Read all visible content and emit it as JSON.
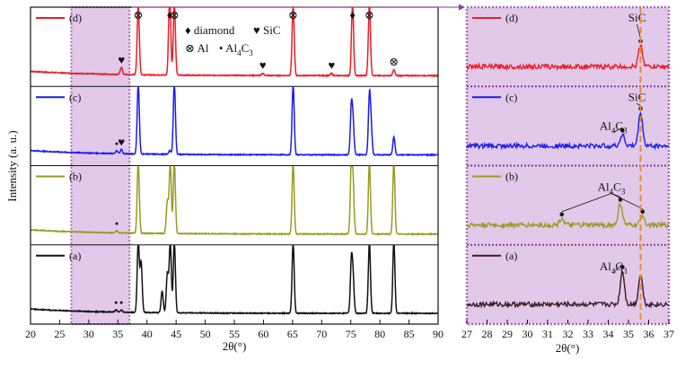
{
  "chart_data": [
    {
      "type": "line",
      "xlabel": "2θ(°)",
      "ylabel": "Intensity (a. u.)",
      "xlim": [
        20,
        90
      ],
      "x_ticks": [
        "20",
        "25",
        "30",
        "35",
        "40",
        "45",
        "50",
        "55",
        "60",
        "65",
        "70",
        "75",
        "80",
        "85",
        "90"
      ],
      "highlight_range": [
        27,
        37
      ],
      "legend": {
        "diamond": "diamond",
        "sic": "SiC",
        "al": "Al",
        "al4c3_main": "Al",
        "al4c3_sub": "4",
        "al4c3_end": "C",
        "al4c3_sub2": "3"
      },
      "series": [
        {
          "name": "(d)",
          "color": "#ee1c25",
          "peaks": [
            [
              35.6,
              0.1
            ],
            [
              38.5,
              1.0
            ],
            [
              43.9,
              1.2
            ],
            [
              44.7,
              1.0
            ],
            [
              59.9,
              0.03
            ],
            [
              65.1,
              1.0
            ],
            [
              71.7,
              0.03
            ],
            [
              75.3,
              1.0
            ],
            [
              78.2,
              1.0
            ],
            [
              82.4,
              0.08
            ]
          ],
          "markers": [
            {
              "x": 35.6,
              "sym": "heart"
            },
            {
              "x": 38.5,
              "sym": "otimes"
            },
            {
              "x": 43.9,
              "sym": "diamond"
            },
            {
              "x": 44.7,
              "sym": "otimes"
            },
            {
              "x": 59.9,
              "sym": "heart"
            },
            {
              "x": 65.1,
              "sym": "otimes"
            },
            {
              "x": 71.7,
              "sym": "heart"
            },
            {
              "x": 75.3,
              "sym": "diamond"
            },
            {
              "x": 78.2,
              "sym": "otimes"
            },
            {
              "x": 82.4,
              "sym": "otimes"
            }
          ]
        },
        {
          "name": "(c)",
          "color": "#1b1bf2",
          "peaks": [
            [
              34.8,
              0.04
            ],
            [
              35.6,
              0.06
            ],
            [
              38.5,
              1.0
            ],
            [
              43.9,
              0.05
            ],
            [
              44.7,
              1.0
            ],
            [
              65.1,
              1.0
            ],
            [
              75.1,
              0.65
            ],
            [
              75.4,
              0.4
            ],
            [
              78.2,
              0.8
            ],
            [
              78.5,
              0.35
            ],
            [
              82.4,
              0.25
            ]
          ],
          "markers": [
            {
              "x": 34.8,
              "sym": "dot"
            },
            {
              "x": 35.6,
              "sym": "heart"
            }
          ]
        },
        {
          "name": "(b)",
          "color": "#9a9a23",
          "peaks": [
            [
              34.8,
              0.03
            ],
            [
              38.5,
              1.0
            ],
            [
              43.5,
              0.45
            ],
            [
              44.0,
              1.0
            ],
            [
              44.7,
              1.0
            ],
            [
              65.1,
              1.0
            ],
            [
              75.1,
              1.0
            ],
            [
              75.4,
              0.6
            ],
            [
              78.2,
              1.0
            ],
            [
              82.4,
              1.0
            ]
          ],
          "markers": [
            {
              "x": 34.8,
              "sym": "dot"
            }
          ]
        },
        {
          "name": "(a)",
          "color": "#111111",
          "peaks": [
            [
              34.7,
              0.03
            ],
            [
              35.6,
              0.03
            ],
            [
              38.5,
              1.0
            ],
            [
              39.0,
              0.7
            ],
            [
              42.6,
              0.3
            ],
            [
              43.5,
              0.55
            ],
            [
              44.0,
              1.0
            ],
            [
              44.7,
              1.0
            ],
            [
              65.1,
              1.0
            ],
            [
              75.1,
              0.7
            ],
            [
              75.4,
              0.45
            ],
            [
              78.2,
              1.0
            ],
            [
              82.4,
              1.0
            ]
          ],
          "markers": [
            {
              "x": 34.7,
              "sym": "dot"
            },
            {
              "x": 35.6,
              "sym": "dot"
            }
          ]
        }
      ]
    },
    {
      "type": "line",
      "xlabel": "2θ(°)",
      "xlim": [
        27,
        37
      ],
      "x_ticks": [
        "27",
        "28",
        "29",
        "30",
        "31",
        "32",
        "33",
        "34",
        "35",
        "36",
        "37"
      ],
      "reference_line_x": 35.6,
      "series": [
        {
          "name": "(d)",
          "color": "#ee1c25",
          "peaks": [
            [
              35.6,
              0.55
            ]
          ],
          "annotations": [
            {
              "x": 35.6,
              "label": "SiC"
            }
          ]
        },
        {
          "name": "(c)",
          "color": "#1b1bf2",
          "peaks": [
            [
              34.7,
              0.3
            ],
            [
              35.6,
              0.85
            ]
          ],
          "annotations": [
            {
              "x": 35.6,
              "label": "SiC"
            },
            {
              "x": 34.7,
              "label": "Al4C3"
            }
          ]
        },
        {
          "name": "(b)",
          "color": "#9a9a23",
          "peaks": [
            [
              31.7,
              0.18
            ],
            [
              34.6,
              0.55
            ],
            [
              35.7,
              0.25
            ]
          ],
          "annotations": [
            {
              "x": 34.6,
              "label": "Al4C3"
            }
          ]
        },
        {
          "name": "(a)",
          "color": "#3a1a2a",
          "peaks": [
            [
              34.7,
              0.85
            ],
            [
              35.6,
              0.75
            ]
          ],
          "annotations": [
            {
              "x": 34.7,
              "label": "Al4C3"
            }
          ]
        }
      ]
    }
  ]
}
